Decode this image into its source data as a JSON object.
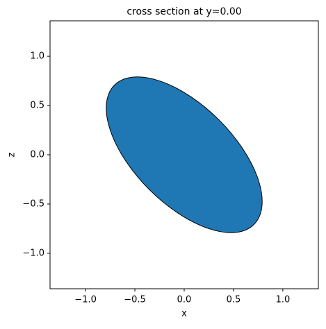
{
  "chart_data": {
    "type": "ellipse",
    "title": "cross section at y=0.00",
    "x_label": "x",
    "y_label": "z",
    "center": [
      0,
      0
    ],
    "semi_axes": [
      1,
      0.5
    ],
    "angle": -45,
    "color": "#1f77b4",
    "edge_color": "#000000",
    "xlim": [
      -1.36,
      1.36
    ],
    "ylim": [
      -1.36,
      1.36
    ],
    "xticks": [
      {
        "value": -1,
        "label": "−1.0"
      },
      {
        "value": -0.5,
        "label": "−0.5"
      },
      {
        "value": 0,
        "label": "0.0"
      },
      {
        "value": 0.5,
        "label": "0.5"
      },
      {
        "value": 1,
        "label": "1.0"
      }
    ],
    "yticks": [
      {
        "value": -1,
        "label": "−1.0"
      },
      {
        "value": -0.5,
        "label": "−0.5"
      },
      {
        "value": 0,
        "label": "0.0"
      },
      {
        "value": 0.5,
        "label": "0.5"
      },
      {
        "value": 1,
        "label": "1.0"
      }
    ],
    "grid": false
  }
}
